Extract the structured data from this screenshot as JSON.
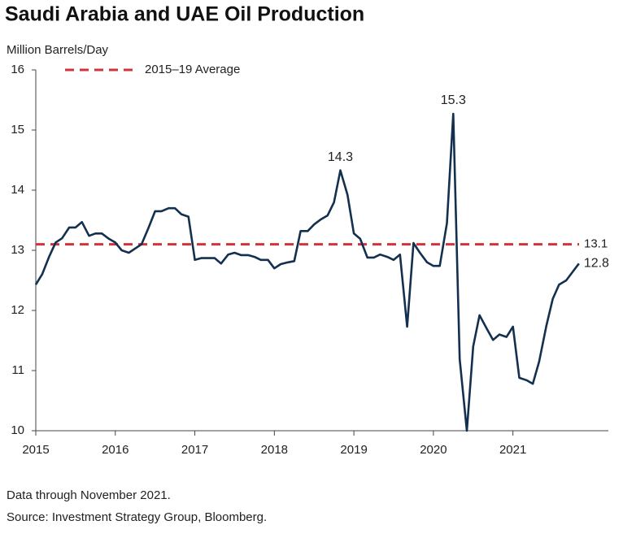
{
  "chart_data": {
    "type": "line",
    "title": "Saudi Arabia and UAE Oil Production",
    "y_label": "Million Barrels/Day",
    "footnotes": [
      "Data through November 2021.",
      "Source: Investment Strategy Group, Bloomberg."
    ],
    "xlim": [
      2015,
      2022.2
    ],
    "xticks": [
      2015,
      2016,
      2017,
      2018,
      2019,
      2020,
      2021
    ],
    "ylim": [
      10,
      16
    ],
    "yticks": [
      10,
      11,
      12,
      13,
      14,
      15,
      16
    ],
    "reference_line": {
      "name": "2015–19 Average",
      "value": 13.1,
      "color": "#d0343a"
    },
    "x": [
      2015.0,
      2015.08,
      2015.17,
      2015.25,
      2015.33,
      2015.42,
      2015.5,
      2015.58,
      2015.67,
      2015.75,
      2015.83,
      2015.92,
      2016.0,
      2016.08,
      2016.17,
      2016.25,
      2016.33,
      2016.42,
      2016.5,
      2016.58,
      2016.67,
      2016.75,
      2016.83,
      2016.92,
      2017.0,
      2017.08,
      2017.17,
      2017.25,
      2017.33,
      2017.42,
      2017.5,
      2017.58,
      2017.67,
      2017.75,
      2017.83,
      2017.92,
      2018.0,
      2018.08,
      2018.17,
      2018.25,
      2018.33,
      2018.42,
      2018.5,
      2018.58,
      2018.67,
      2018.75,
      2018.83,
      2018.92,
      2019.0,
      2019.08,
      2019.17,
      2019.25,
      2019.33,
      2019.42,
      2019.5,
      2019.58,
      2019.67,
      2019.75,
      2019.83,
      2019.92,
      2020.0,
      2020.08,
      2020.17,
      2020.25,
      2020.33,
      2020.42,
      2020.5,
      2020.58,
      2020.67,
      2020.75,
      2020.83,
      2020.92,
      2021.0,
      2021.08,
      2021.17,
      2021.25,
      2021.33,
      2021.42,
      2021.5,
      2021.58,
      2021.67,
      2021.75,
      2021.83
    ],
    "series": [
      {
        "name": "Saudi Arabia and UAE Oil Production",
        "color": "#13304f",
        "values": [
          12.43,
          12.6,
          12.9,
          13.13,
          13.2,
          13.38,
          13.38,
          13.47,
          13.24,
          13.28,
          13.28,
          13.19,
          13.13,
          13.0,
          12.96,
          13.03,
          13.1,
          13.38,
          13.65,
          13.65,
          13.7,
          13.7,
          13.6,
          13.56,
          12.84,
          12.87,
          12.87,
          12.87,
          12.78,
          12.93,
          12.96,
          12.92,
          12.92,
          12.89,
          12.84,
          12.84,
          12.7,
          12.77,
          12.8,
          12.82,
          13.32,
          13.32,
          13.43,
          13.51,
          13.58,
          13.8,
          14.33,
          13.92,
          13.28,
          13.19,
          12.88,
          12.88,
          12.93,
          12.89,
          12.84,
          12.93,
          11.73,
          13.12,
          12.96,
          12.8,
          12.74,
          12.74,
          13.45,
          15.27,
          11.19,
          10.0,
          11.4,
          11.92,
          11.7,
          11.51,
          11.6,
          11.56,
          11.73,
          10.88,
          10.84,
          10.78,
          11.15,
          11.74,
          12.19,
          12.43,
          12.5,
          12.64,
          12.78
        ],
        "value_labels": [
          null,
          null,
          null,
          null,
          null,
          null,
          null,
          null,
          null,
          null,
          null,
          null,
          null,
          null,
          null,
          null,
          null,
          null,
          null,
          null,
          null,
          null,
          null,
          null,
          null,
          null,
          null,
          null,
          null,
          null,
          null,
          null,
          null,
          null,
          null,
          null,
          null,
          null,
          null,
          null,
          null,
          null,
          null,
          null,
          null,
          null,
          "14.3",
          null,
          null,
          null,
          null,
          null,
          null,
          null,
          null,
          null,
          null,
          null,
          null,
          null,
          null,
          null,
          null,
          "15.3",
          null,
          null,
          null,
          null,
          null,
          null,
          null,
          null,
          null,
          null,
          null,
          null,
          null,
          null,
          null,
          null,
          null,
          null,
          "12.8"
        ]
      }
    ]
  }
}
